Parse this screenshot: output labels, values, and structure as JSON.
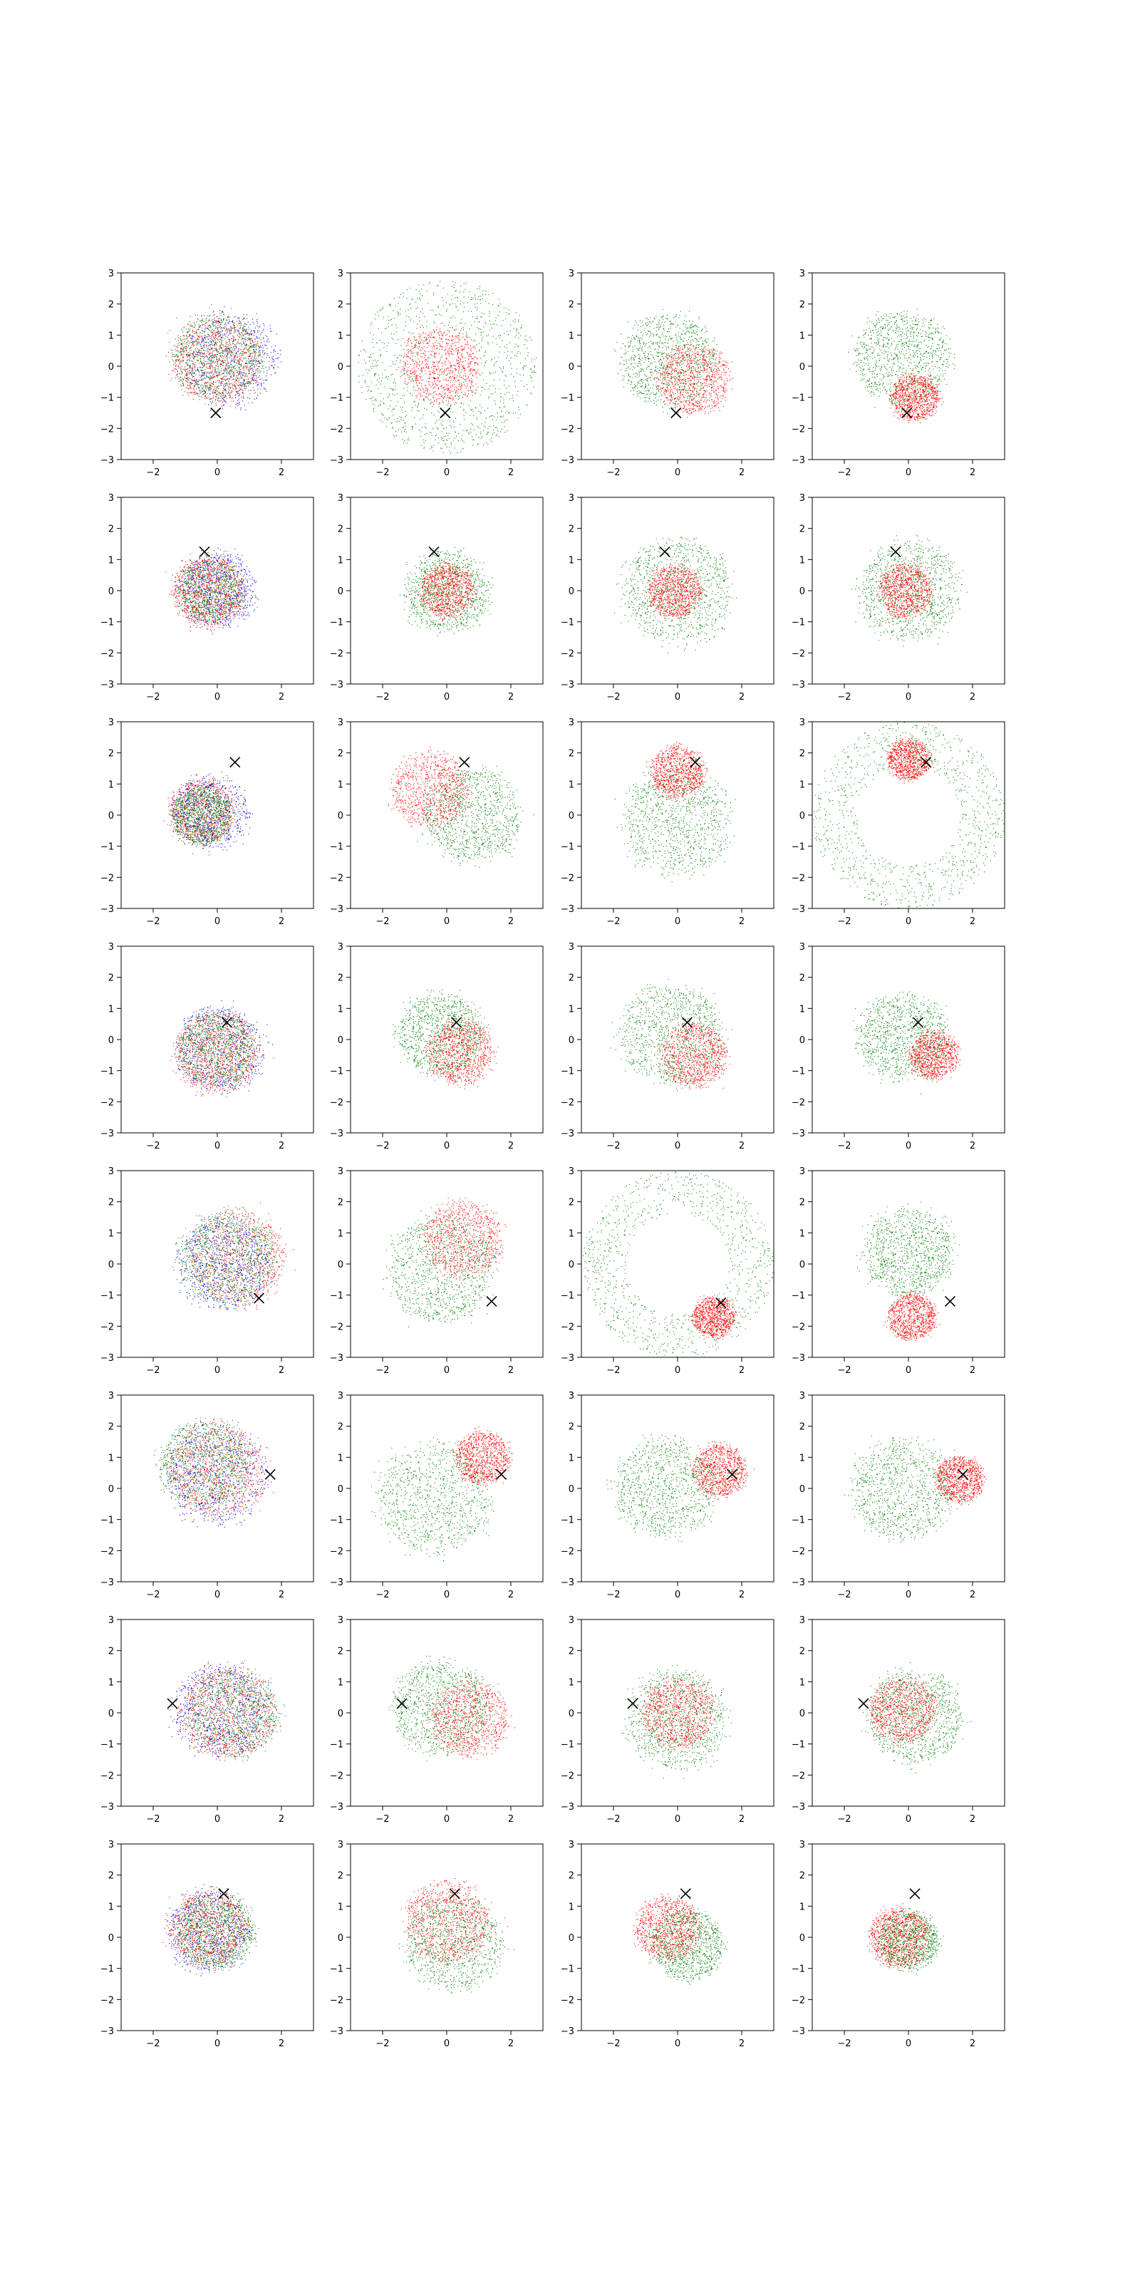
{
  "figure": {
    "rows": 8,
    "cols": 4,
    "colors": {
      "background": "#ffffff",
      "frame": "#000000",
      "green": "#008000",
      "red": "#ff0000",
      "blue": "#0000ff",
      "marker": "#000000"
    }
  },
  "axes_common": {
    "xlim": [
      -3,
      3
    ],
    "ylim": [
      -3,
      3
    ],
    "xticks": [
      "−2",
      "0",
      "2"
    ],
    "yticks": [
      "3",
      "2",
      "1",
      "0",
      "−1",
      "−2",
      "−3"
    ],
    "xtick_values": [
      -2,
      0,
      2
    ],
    "ytick_values": [
      3,
      2,
      1,
      0,
      -1,
      -2,
      -3
    ]
  },
  "chart_data": [
    {
      "type": "scatter",
      "row": 0,
      "col": 0,
      "marker": {
        "x": -0.05,
        "y": -1.5,
        "symbol": "x"
      },
      "distribution": "mixed",
      "red": {
        "cx": 0,
        "cy": 0.2,
        "r": 1.5
      },
      "green": {
        "cx": 0,
        "cy": 0.3,
        "r": 1.5
      },
      "blue": {
        "cx": 0.4,
        "cy": 0.2,
        "r": 1.6
      }
    },
    {
      "type": "scatter",
      "row": 0,
      "col": 1,
      "marker": {
        "x": -0.05,
        "y": -1.5,
        "symbol": "x"
      },
      "distribution": "core-ring",
      "red": {
        "cx": -0.2,
        "cy": 0,
        "r": 1.3
      },
      "green": {
        "rin": 1.0,
        "rout": 2.8
      }
    },
    {
      "type": "scatter",
      "row": 0,
      "col": 2,
      "marker": {
        "x": -0.05,
        "y": -1.5,
        "symbol": "x"
      },
      "distribution": "blob",
      "red": {
        "cx": 0.5,
        "cy": -0.4,
        "r": 1.2
      },
      "green": {
        "cx": -0.3,
        "cy": 0.2,
        "r": 1.6
      }
    },
    {
      "type": "scatter",
      "row": 0,
      "col": 3,
      "marker": {
        "x": -0.05,
        "y": -1.5,
        "symbol": "x"
      },
      "distribution": "blob",
      "red": {
        "cx": 0.2,
        "cy": -1.0,
        "r": 0.8
      },
      "green": {
        "cx": -0.2,
        "cy": 0.3,
        "r": 1.6
      }
    },
    {
      "type": "scatter",
      "row": 1,
      "col": 0,
      "marker": {
        "x": -0.4,
        "y": 1.25,
        "symbol": "x"
      },
      "distribution": "mixed",
      "red": {
        "cx": -0.3,
        "cy": 0,
        "r": 1.2
      },
      "green": {
        "cx": -0.2,
        "cy": 0,
        "r": 1.1
      },
      "blue": {
        "cx": 0,
        "cy": 0,
        "r": 1.3
      }
    },
    {
      "type": "scatter",
      "row": 1,
      "col": 1,
      "marker": {
        "x": -0.4,
        "y": 1.25,
        "symbol": "x"
      },
      "distribution": "blob",
      "red": {
        "cx": 0,
        "cy": 0,
        "r": 0.9
      },
      "green": {
        "cx": 0,
        "cy": 0,
        "r": 1.4
      }
    },
    {
      "type": "scatter",
      "row": 1,
      "col": 2,
      "marker": {
        "x": -0.4,
        "y": 1.25,
        "symbol": "x"
      },
      "distribution": "blob",
      "red": {
        "cx": -0.1,
        "cy": 0,
        "r": 0.9
      },
      "green": {
        "cx": 0,
        "cy": 0,
        "r": 1.8
      }
    },
    {
      "type": "scatter",
      "row": 1,
      "col": 3,
      "marker": {
        "x": -0.4,
        "y": 1.25,
        "symbol": "x"
      },
      "distribution": "blob",
      "red": {
        "cx": -0.1,
        "cy": 0,
        "r": 0.9
      },
      "green": {
        "cx": 0,
        "cy": 0,
        "r": 1.7
      }
    },
    {
      "type": "scatter",
      "row": 2,
      "col": 0,
      "marker": {
        "x": 0.55,
        "y": 1.7,
        "symbol": "x"
      },
      "distribution": "mixed",
      "red": {
        "cx": -0.5,
        "cy": 0.1,
        "r": 1.1
      },
      "green": {
        "cx": -0.5,
        "cy": 0,
        "r": 1.0
      },
      "blue": {
        "cx": -0.2,
        "cy": 0.1,
        "r": 1.3
      }
    },
    {
      "type": "scatter",
      "row": 2,
      "col": 1,
      "marker": {
        "x": 0.55,
        "y": 1.7,
        "symbol": "x"
      },
      "distribution": "blob",
      "red": {
        "cx": -0.5,
        "cy": 0.8,
        "r": 1.3
      },
      "green": {
        "cx": 0.8,
        "cy": 0,
        "r": 1.6
      }
    },
    {
      "type": "scatter",
      "row": 2,
      "col": 2,
      "marker": {
        "x": 0.55,
        "y": 1.7,
        "symbol": "x"
      },
      "distribution": "blob",
      "red": {
        "cx": 0,
        "cy": 1.4,
        "r": 0.9
      },
      "green": {
        "cx": 0,
        "cy": -0.2,
        "r": 1.8
      }
    },
    {
      "type": "scatter",
      "row": 2,
      "col": 3,
      "marker": {
        "x": 0.55,
        "y": 1.7,
        "symbol": "x"
      },
      "distribution": "cap-ring",
      "red": {
        "cx": 0,
        "cy": 1.8,
        "r": 0.7
      },
      "green": {
        "rin": 1.6,
        "rout": 3.0
      }
    },
    {
      "type": "scatter",
      "row": 3,
      "col": 0,
      "marker": {
        "x": 0.3,
        "y": 0.55,
        "symbol": "x"
      },
      "distribution": "mixed",
      "red": {
        "cx": 0,
        "cy": -0.4,
        "r": 1.4
      },
      "green": {
        "cx": 0,
        "cy": -0.3,
        "r": 1.3
      },
      "blue": {
        "cx": 0.1,
        "cy": -0.3,
        "r": 1.5
      }
    },
    {
      "type": "scatter",
      "row": 3,
      "col": 1,
      "marker": {
        "x": 0.3,
        "y": 0.55,
        "symbol": "x"
      },
      "distribution": "blob",
      "red": {
        "cx": 0.4,
        "cy": -0.4,
        "r": 1.1
      },
      "green": {
        "cx": -0.2,
        "cy": 0.2,
        "r": 1.4
      }
    },
    {
      "type": "scatter",
      "row": 3,
      "col": 2,
      "marker": {
        "x": 0.3,
        "y": 0.55,
        "symbol": "x"
      },
      "distribution": "blob",
      "red": {
        "cx": 0.5,
        "cy": -0.5,
        "r": 1.1
      },
      "green": {
        "cx": -0.2,
        "cy": 0.2,
        "r": 1.7
      }
    },
    {
      "type": "scatter",
      "row": 3,
      "col": 3,
      "marker": {
        "x": 0.3,
        "y": 0.55,
        "symbol": "x"
      },
      "distribution": "blob",
      "red": {
        "cx": 0.8,
        "cy": -0.5,
        "r": 0.8
      },
      "green": {
        "cx": -0.2,
        "cy": 0.1,
        "r": 1.5
      }
    },
    {
      "type": "scatter",
      "row": 4,
      "col": 0,
      "marker": {
        "x": 1.3,
        "y": -1.1,
        "symbol": "x"
      },
      "distribution": "mixed",
      "red": {
        "cx": 0.6,
        "cy": 0.2,
        "r": 1.6
      },
      "green": {
        "cx": 0.3,
        "cy": 0.2,
        "r": 1.6
      },
      "blue": {
        "cx": 0.2,
        "cy": 0,
        "r": 1.6
      }
    },
    {
      "type": "scatter",
      "row": 4,
      "col": 1,
      "marker": {
        "x": 1.4,
        "y": -1.2,
        "symbol": "x"
      },
      "distribution": "blob",
      "red": {
        "cx": 0.5,
        "cy": 0.8,
        "r": 1.3
      },
      "green": {
        "cx": -0.2,
        "cy": -0.2,
        "r": 1.8
      }
    },
    {
      "type": "scatter",
      "row": 4,
      "col": 2,
      "marker": {
        "x": 1.35,
        "y": -1.25,
        "symbol": "x"
      },
      "distribution": "cap-ring",
      "red": {
        "cx": 1.1,
        "cy": -1.7,
        "r": 0.7
      },
      "green": {
        "rin": 1.6,
        "rout": 3.0
      }
    },
    {
      "type": "scatter",
      "row": 4,
      "col": 3,
      "marker": {
        "x": 1.3,
        "y": -1.2,
        "symbol": "x"
      },
      "distribution": "blob",
      "red": {
        "cx": 0.1,
        "cy": -1.7,
        "r": 0.8
      },
      "green": {
        "cx": 0,
        "cy": 0.4,
        "r": 1.5
      }
    },
    {
      "type": "scatter",
      "row": 5,
      "col": 0,
      "marker": {
        "x": 1.65,
        "y": 0.45,
        "symbol": "x"
      },
      "distribution": "mixed",
      "red": {
        "cx": 0,
        "cy": 0.6,
        "r": 1.6
      },
      "green": {
        "cx": -0.4,
        "cy": 0.8,
        "r": 1.5
      },
      "blue": {
        "cx": 0,
        "cy": 0.4,
        "r": 1.7
      }
    },
    {
      "type": "scatter",
      "row": 5,
      "col": 1,
      "marker": {
        "x": 1.7,
        "y": 0.45,
        "symbol": "x"
      },
      "distribution": "blob",
      "red": {
        "cx": 1.1,
        "cy": 1.0,
        "r": 0.9
      },
      "green": {
        "cx": -0.4,
        "cy": -0.3,
        "r": 1.9
      }
    },
    {
      "type": "scatter",
      "row": 5,
      "col": 2,
      "marker": {
        "x": 1.7,
        "y": 0.45,
        "symbol": "x"
      },
      "distribution": "blob",
      "red": {
        "cx": 1.3,
        "cy": 0.6,
        "r": 0.9
      },
      "green": {
        "cx": -0.4,
        "cy": 0,
        "r": 1.7
      }
    },
    {
      "type": "scatter",
      "row": 5,
      "col": 3,
      "marker": {
        "x": 1.7,
        "y": 0.45,
        "symbol": "x"
      },
      "distribution": "blob",
      "red": {
        "cx": 1.6,
        "cy": 0.3,
        "r": 0.8
      },
      "green": {
        "cx": -0.2,
        "cy": 0,
        "r": 1.7
      }
    },
    {
      "type": "scatter",
      "row": 6,
      "col": 0,
      "marker": {
        "x": -1.4,
        "y": 0.3,
        "symbol": "x"
      },
      "distribution": "mixed",
      "red": {
        "cx": 0.3,
        "cy": 0,
        "r": 1.6
      },
      "green": {
        "cx": 0.5,
        "cy": 0,
        "r": 1.5
      },
      "blue": {
        "cx": 0.1,
        "cy": 0.1,
        "r": 1.6
      }
    },
    {
      "type": "scatter",
      "row": 6,
      "col": 1,
      "marker": {
        "x": -1.4,
        "y": 0.3,
        "symbol": "x"
      },
      "distribution": "blob",
      "red": {
        "cx": 0.7,
        "cy": -0.2,
        "r": 1.3
      },
      "green": {
        "cx": -0.2,
        "cy": 0.2,
        "r": 1.6
      }
    },
    {
      "type": "scatter",
      "row": 6,
      "col": 2,
      "marker": {
        "x": -1.4,
        "y": 0.3,
        "symbol": "x"
      },
      "distribution": "blob",
      "red": {
        "cx": 0,
        "cy": 0,
        "r": 1.2
      },
      "green": {
        "cx": 0,
        "cy": -0.2,
        "r": 1.7
      }
    },
    {
      "type": "scatter",
      "row": 6,
      "col": 3,
      "marker": {
        "x": -1.4,
        "y": 0.3,
        "symbol": "x"
      },
      "distribution": "blob",
      "red": {
        "cx": -0.2,
        "cy": 0.1,
        "r": 1.1
      },
      "green": {
        "cx": 0.2,
        "cy": -0.1,
        "r": 1.6
      }
    },
    {
      "type": "scatter",
      "row": 7,
      "col": 0,
      "marker": {
        "x": 0.2,
        "y": 1.4,
        "symbol": "x"
      },
      "distribution": "mixed",
      "red": {
        "cx": -0.3,
        "cy": 0.3,
        "r": 1.3
      },
      "green": {
        "cx": -0.1,
        "cy": 0.2,
        "r": 1.3
      },
      "blue": {
        "cx": -0.3,
        "cy": 0.2,
        "r": 1.4
      }
    },
    {
      "type": "scatter",
      "row": 7,
      "col": 1,
      "marker": {
        "x": 0.25,
        "y": 1.4,
        "symbol": "x"
      },
      "distribution": "blob",
      "red": {
        "cx": 0,
        "cy": 0.5,
        "r": 1.4
      },
      "green": {
        "cx": 0.2,
        "cy": -0.2,
        "r": 1.6
      }
    },
    {
      "type": "scatter",
      "row": 7,
      "col": 2,
      "marker": {
        "x": 0.25,
        "y": 1.4,
        "symbol": "x"
      },
      "distribution": "blob",
      "red": {
        "cx": -0.3,
        "cy": 0.3,
        "r": 1.1
      },
      "green": {
        "cx": 0.3,
        "cy": -0.2,
        "r": 1.2
      }
    },
    {
      "type": "scatter",
      "row": 7,
      "col": 3,
      "marker": {
        "x": 0.2,
        "y": 1.4,
        "symbol": "x"
      },
      "distribution": "blob",
      "red": {
        "cx": -0.3,
        "cy": 0,
        "r": 1.0
      },
      "green": {
        "cx": 0,
        "cy": -0.1,
        "r": 1.0
      }
    }
  ]
}
